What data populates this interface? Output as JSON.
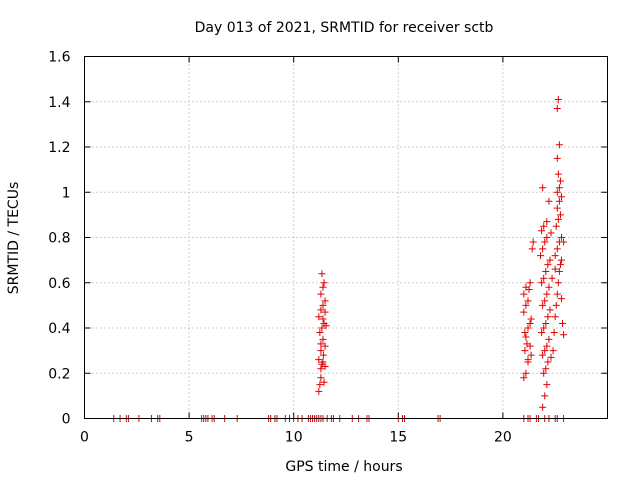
{
  "chart_data": {
    "type": "scatter",
    "title": "Day 013 of 2021, SRMTID for receiver sctb",
    "xlabel": "GPS time / hours",
    "ylabel": "SRMTID / TECUs",
    "xlim": [
      0,
      25
    ],
    "ylim": [
      0,
      1.6
    ],
    "xticks": [
      0,
      5,
      10,
      15,
      20
    ],
    "yticks": [
      0,
      0.2,
      0.4,
      0.6,
      0.8,
      1,
      1.2,
      1.4,
      1.6
    ],
    "xtick_labels": [
      "0",
      "5",
      "10",
      "15",
      "20"
    ],
    "ytick_labels": [
      "0",
      "0.2",
      "0.4",
      "0.6",
      "0.8",
      "1",
      "1.2",
      "1.4",
      "1.6"
    ],
    "grid": true,
    "marker": "+",
    "color": "#e00000",
    "series": [
      {
        "name": "SRMTID",
        "points": [
          [
            1.4,
            0
          ],
          [
            1.7,
            0
          ],
          [
            2.0,
            0
          ],
          [
            2.1,
            0
          ],
          [
            2.6,
            0
          ],
          [
            3.2,
            0
          ],
          [
            3.5,
            0
          ],
          [
            3.6,
            0
          ],
          [
            5.6,
            0
          ],
          [
            5.7,
            0
          ],
          [
            5.8,
            0
          ],
          [
            5.9,
            0
          ],
          [
            6.1,
            0
          ],
          [
            6.2,
            0
          ],
          [
            6.7,
            0
          ],
          [
            7.3,
            0
          ],
          [
            8.8,
            0
          ],
          [
            8.9,
            0
          ],
          [
            9.1,
            0
          ],
          [
            9.2,
            0
          ],
          [
            9.6,
            0
          ],
          [
            9.8,
            0
          ],
          [
            10.0,
            0
          ],
          [
            10.2,
            0
          ],
          [
            10.4,
            0
          ],
          [
            10.7,
            0
          ],
          [
            10.8,
            0
          ],
          [
            10.9,
            0
          ],
          [
            11.0,
            0
          ],
          [
            11.1,
            0
          ],
          [
            11.2,
            0
          ],
          [
            11.3,
            0
          ],
          [
            11.4,
            0
          ],
          [
            11.6,
            0
          ],
          [
            11.8,
            0
          ],
          [
            11.9,
            0
          ],
          [
            12.2,
            0
          ],
          [
            12.8,
            0
          ],
          [
            13.1,
            0
          ],
          [
            13.5,
            0
          ],
          [
            13.6,
            0
          ],
          [
            15.0,
            0
          ],
          [
            15.2,
            0
          ],
          [
            15.3,
            0
          ],
          [
            16.9,
            0
          ],
          [
            17.0,
            0
          ],
          [
            21.0,
            0
          ],
          [
            21.2,
            0
          ],
          [
            21.3,
            0
          ],
          [
            21.6,
            0
          ],
          [
            21.7,
            0
          ],
          [
            22.0,
            0
          ],
          [
            22.2,
            0
          ],
          [
            22.5,
            0
          ],
          [
            22.6,
            0
          ],
          [
            22.9,
            0
          ],
          [
            11.2,
            0.12
          ],
          [
            11.25,
            0.15
          ],
          [
            11.3,
            0.18
          ],
          [
            11.45,
            0.16
          ],
          [
            11.3,
            0.22
          ],
          [
            11.35,
            0.24
          ],
          [
            11.4,
            0.25
          ],
          [
            11.5,
            0.23
          ],
          [
            11.2,
            0.26
          ],
          [
            11.3,
            0.3
          ],
          [
            11.4,
            0.35
          ],
          [
            11.5,
            0.32
          ],
          [
            11.25,
            0.38
          ],
          [
            11.35,
            0.4
          ],
          [
            11.45,
            0.42
          ],
          [
            11.55,
            0.41
          ],
          [
            11.2,
            0.45
          ],
          [
            11.3,
            0.48
          ],
          [
            11.4,
            0.5
          ],
          [
            11.5,
            0.52
          ],
          [
            11.3,
            0.55
          ],
          [
            11.4,
            0.58
          ],
          [
            11.45,
            0.6
          ],
          [
            11.35,
            0.64
          ],
          [
            11.5,
            0.47
          ],
          [
            11.4,
            0.44
          ],
          [
            11.3,
            0.33
          ],
          [
            11.42,
            0.28
          ],
          [
            21.0,
            0.18
          ],
          [
            21.1,
            0.2
          ],
          [
            21.2,
            0.25
          ],
          [
            21.05,
            0.3
          ],
          [
            21.15,
            0.33
          ],
          [
            21.1,
            0.36
          ],
          [
            21.2,
            0.4
          ],
          [
            21.3,
            0.42
          ],
          [
            21.0,
            0.47
          ],
          [
            21.1,
            0.5
          ],
          [
            21.2,
            0.52
          ],
          [
            21.0,
            0.55
          ],
          [
            21.1,
            0.58
          ],
          [
            21.25,
            0.57
          ],
          [
            21.3,
            0.6
          ],
          [
            21.2,
            0.26
          ],
          [
            21.3,
            0.32
          ],
          [
            21.35,
            0.44
          ],
          [
            21.4,
            0.75
          ],
          [
            21.45,
            0.78
          ],
          [
            21.35,
            0.28
          ],
          [
            21.05,
            0.38
          ],
          [
            21.9,
            0.05
          ],
          [
            22.0,
            0.1
          ],
          [
            22.1,
            0.15
          ],
          [
            21.95,
            0.2
          ],
          [
            22.05,
            0.22
          ],
          [
            22.15,
            0.25
          ],
          [
            21.9,
            0.28
          ],
          [
            22.0,
            0.3
          ],
          [
            22.1,
            0.32
          ],
          [
            22.2,
            0.35
          ],
          [
            21.85,
            0.38
          ],
          [
            21.95,
            0.4
          ],
          [
            22.05,
            0.42
          ],
          [
            22.15,
            0.45
          ],
          [
            22.25,
            0.48
          ],
          [
            21.9,
            0.5
          ],
          [
            22.0,
            0.52
          ],
          [
            22.1,
            0.55
          ],
          [
            22.2,
            0.58
          ],
          [
            21.85,
            0.6
          ],
          [
            21.95,
            0.62
          ],
          [
            22.05,
            0.65
          ],
          [
            22.15,
            0.68
          ],
          [
            22.25,
            0.7
          ],
          [
            21.8,
            0.72
          ],
          [
            21.9,
            0.75
          ],
          [
            22.0,
            0.78
          ],
          [
            22.1,
            0.8
          ],
          [
            21.85,
            0.83
          ],
          [
            21.95,
            0.85
          ],
          [
            22.1,
            0.87
          ],
          [
            21.9,
            1.02
          ],
          [
            22.2,
            0.96
          ],
          [
            22.3,
            0.27
          ],
          [
            22.35,
            0.62
          ],
          [
            22.3,
            0.82
          ],
          [
            22.4,
            0.3
          ],
          [
            22.45,
            0.38
          ],
          [
            22.5,
            0.45
          ],
          [
            22.55,
            0.5
          ],
          [
            22.6,
            0.55
          ],
          [
            22.65,
            0.6
          ],
          [
            22.7,
            0.65
          ],
          [
            22.75,
            0.68
          ],
          [
            22.8,
            0.7
          ],
          [
            22.5,
            0.72
          ],
          [
            22.6,
            0.75
          ],
          [
            22.7,
            0.78
          ],
          [
            22.8,
            0.8
          ],
          [
            22.9,
            0.78
          ],
          [
            22.55,
            0.85
          ],
          [
            22.65,
            0.88
          ],
          [
            22.75,
            0.9
          ],
          [
            22.6,
            0.93
          ],
          [
            22.7,
            0.96
          ],
          [
            22.8,
            0.98
          ],
          [
            22.6,
            1.0
          ],
          [
            22.7,
            1.02
          ],
          [
            22.75,
            1.05
          ],
          [
            22.65,
            1.08
          ],
          [
            22.6,
            1.15
          ],
          [
            22.7,
            1.21
          ],
          [
            22.6,
            1.37
          ],
          [
            22.65,
            1.41
          ],
          [
            22.85,
            0.42
          ],
          [
            22.9,
            0.37
          ],
          [
            22.5,
            0.66
          ],
          [
            22.8,
            0.53
          ]
        ]
      }
    ]
  }
}
